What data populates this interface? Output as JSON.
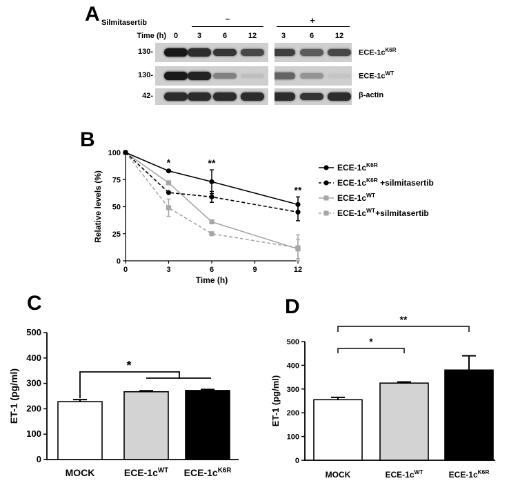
{
  "panels": {
    "a": "A",
    "b": "B",
    "c": "C",
    "d": "D"
  },
  "western_blot": {
    "treatment_label": "Silmitasertib",
    "time_label": "Time (h)",
    "minus": "–",
    "plus": "+",
    "times": [
      "0",
      "3",
      "6",
      "12",
      "3",
      "6",
      "12"
    ],
    "rows": [
      {
        "mw": "130-",
        "name": "ECE-1c",
        "sup": "K6R",
        "bands": [
          0.95,
          0.85,
          0.8,
          0.7,
          0.75,
          0.6,
          0.7
        ]
      },
      {
        "mw": "130-",
        "name": "ECE-1c",
        "sup": "WT",
        "bands": [
          0.95,
          0.9,
          0.4,
          0.08,
          0.55,
          0.3,
          0.05
        ]
      },
      {
        "mw": "42-",
        "name": "β-actin",
        "sup": "",
        "bands": [
          0.85,
          0.85,
          0.85,
          0.85,
          0.85,
          0.8,
          0.85
        ]
      }
    ]
  },
  "chart_data": [
    {
      "type": "line",
      "x": [
        0,
        3,
        6,
        12
      ],
      "xlabel": "Time (h)",
      "ylabel": "Relative levels (%)",
      "xlim": [
        0,
        12
      ],
      "ylim": [
        0,
        100
      ],
      "xticks": [
        "0",
        "3",
        "6",
        "9",
        "12"
      ],
      "yticks": [
        "0",
        "25",
        "50",
        "75",
        "100"
      ],
      "legend_position": "right",
      "series": [
        {
          "name": "ECE-1c",
          "sup": "K6R",
          "suffix": "",
          "values": [
            100,
            83,
            73,
            52
          ],
          "err": [
            0,
            0,
            11,
            7
          ],
          "color": "#000000",
          "dashed": false,
          "marker": "circle"
        },
        {
          "name": "ECE-1c",
          "sup": "K6R",
          "suffix": " +silmitasertib",
          "values": [
            100,
            63,
            59,
            45
          ],
          "err": [
            0,
            0,
            5,
            8
          ],
          "color": "#000000",
          "dashed": true,
          "marker": "circle"
        },
        {
          "name": "ECE-1c",
          "sup": "WT",
          "suffix": "",
          "values": [
            100,
            72,
            36,
            11
          ],
          "err": [
            0,
            0,
            0,
            9
          ],
          "color": "#a6a6a6",
          "dashed": false,
          "marker": "square"
        },
        {
          "name": "ECE-1c",
          "sup": "WT",
          "suffix": "+silmitasertib",
          "values": [
            100,
            49,
            25,
            12
          ],
          "err": [
            0,
            8,
            0,
            12
          ],
          "color": "#a6a6a6",
          "dashed": true,
          "marker": "square"
        }
      ],
      "annotations": [
        {
          "x": 3,
          "label": "*"
        },
        {
          "x": 6,
          "label": "**"
        },
        {
          "x": 12,
          "label": "**"
        }
      ]
    },
    {
      "type": "bar",
      "categories": [
        "MOCK",
        "ECE-1c",
        "ECE-1c"
      ],
      "category_sup": [
        "",
        "WT",
        "K6R"
      ],
      "values": [
        228,
        267,
        272
      ],
      "err": [
        8,
        4,
        4
      ],
      "colors": [
        "#ffffff",
        "#d3d3d3",
        "#000000"
      ],
      "ylabel": "ET-1 (pg/ml)",
      "ylim": [
        0,
        500
      ],
      "yticks": [
        "0",
        "100",
        "200",
        "300",
        "400",
        "500"
      ],
      "significance": "*"
    },
    {
      "type": "bar",
      "categories": [
        "MOCK",
        "ECE-1c",
        "ECE-1c"
      ],
      "category_sup": [
        "",
        "WT",
        "K6R"
      ],
      "values": [
        255,
        325,
        380
      ],
      "err": [
        10,
        5,
        60
      ],
      "colors": [
        "#ffffff",
        "#d3d3d3",
        "#000000"
      ],
      "ylabel": "ET-1 (pg/ml)",
      "ylim": [
        0,
        500
      ],
      "yticks": [
        "0",
        "100",
        "200",
        "300",
        "400",
        "500"
      ],
      "significance": [
        "*",
        "**"
      ]
    }
  ]
}
